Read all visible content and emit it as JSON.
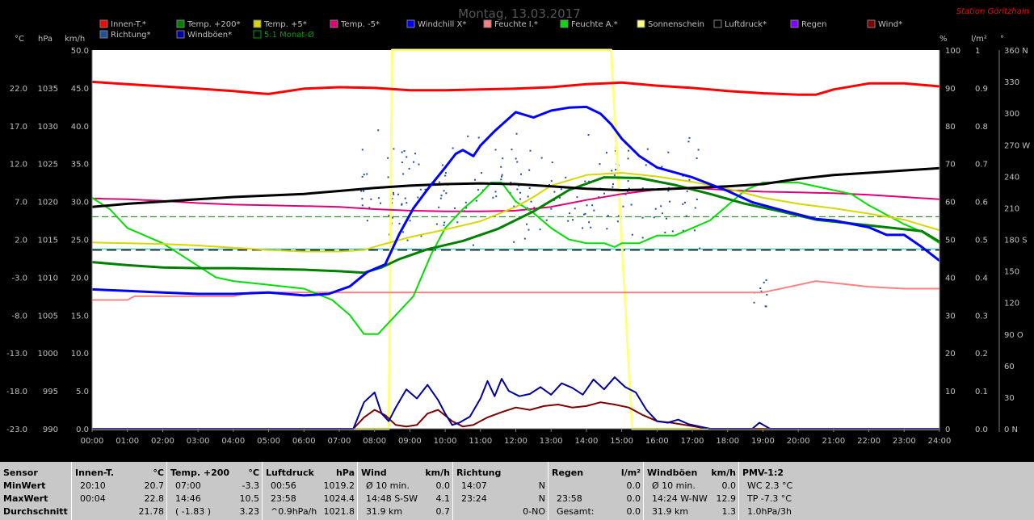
{
  "header": {
    "title": "Montag, 13.03.2017",
    "station": "Station Göritzhain",
    "colors": {
      "background": "#000000",
      "plot": "#ffffff",
      "station": "#ff0000",
      "title": "#555555"
    }
  },
  "legend": [
    {
      "name": "Innen-T.*",
      "color": "#ff0000"
    },
    {
      "name": "Temp. +200*",
      "color": "#008000"
    },
    {
      "name": "Temp. +5*",
      "color": "#d8d800"
    },
    {
      "name": "Temp. -5*",
      "color": "#e0007a"
    },
    {
      "name": "Windchill X*",
      "color": "#0000ff"
    },
    {
      "name": "Feuchte I.*",
      "color": "#ff8080"
    },
    {
      "name": "Feuchte A.*",
      "color": "#00e000"
    },
    {
      "name": "Sonnenschein",
      "color": "#ffff80"
    },
    {
      "name": "Luftdruck*",
      "color": "#000000"
    },
    {
      "name": "Regen",
      "color": "#8000ff"
    },
    {
      "name": "Wind*",
      "color": "#800000"
    },
    {
      "name": "Richtung*",
      "color": "#2050a0"
    },
    {
      "name": "Windböen*",
      "color": "#0000a0"
    },
    {
      "name": "5.1 Monat-Ø",
      "color": "#00a000"
    }
  ],
  "chart_data": {
    "type": "line",
    "x_range": [
      0,
      24
    ],
    "x_ticks": [
      "00:00",
      "01:00",
      "02:00",
      "03:00",
      "04:00",
      "05:00",
      "06:00",
      "07:00",
      "08:00",
      "09:00",
      "10:00",
      "11:00",
      "12:00",
      "13:00",
      "14:00",
      "15:00",
      "16:00",
      "17:00",
      "18:00",
      "19:00",
      "20:00",
      "21:00",
      "22:00",
      "23:00",
      "24:00"
    ],
    "axes": {
      "temp_c": {
        "unit": "°C",
        "range": [
          -23,
          27
        ],
        "ticks": [
          "22.0",
          "17.0",
          "12.0",
          "7.0",
          "2.0",
          "-3.0",
          "-8.0",
          "-13.0",
          "-18.0",
          "-23.0"
        ]
      },
      "pressure_hpa": {
        "unit": "hPa",
        "range": [
          990,
          1040
        ],
        "ticks": [
          "1035",
          "1030",
          "1025",
          "1020",
          "1015",
          "1010",
          "1005",
          "1000",
          "995",
          "990"
        ]
      },
      "wind_kmh": {
        "unit": "km/h",
        "range": [
          0,
          50
        ],
        "ticks": [
          "50.0",
          "45.0",
          "40.0",
          "35.0",
          "30.0",
          "25.0",
          "20.0",
          "15.0",
          "10.0",
          "5.0",
          "0.0"
        ]
      },
      "humidity_pct": {
        "unit": "%",
        "range": [
          0,
          100
        ],
        "ticks": [
          "100",
          "90",
          "80",
          "70",
          "60",
          "50",
          "40",
          "30",
          "20",
          "10",
          "0"
        ]
      },
      "rain_lm2": {
        "unit": "l/m²",
        "range": [
          0,
          1
        ],
        "ticks": [
          "1",
          "0.9",
          "0.8",
          "0.7",
          "0.6",
          "0.5",
          "0.4",
          "0.3",
          "0.2",
          "0.1",
          "0.0"
        ]
      },
      "direction_deg": {
        "unit": "°",
        "range": [
          0,
          360
        ],
        "ticks": [
          "360 N",
          "330",
          "300",
          "270 W",
          "240",
          "210",
          "180 S",
          "150",
          "120",
          "90 O",
          "60",
          "30",
          "0 N"
        ]
      }
    },
    "reference_lines": [
      {
        "name": "5.1 Monat-Ø",
        "axis": "temp_c",
        "value": 5.0,
        "color": "#008000",
        "style": "dashed"
      },
      {
        "axis": "temp_c",
        "value": 0.6,
        "color": "#000000",
        "style": "dashed"
      },
      {
        "axis": "humidity_pct",
        "value": 47.5,
        "color": "#00c0c0",
        "style": "solid"
      }
    ],
    "series": [
      {
        "name": "Innen-T.*",
        "axis": "temp_c",
        "color": "#ff0000",
        "width": 3,
        "x": [
          0,
          1,
          2,
          3,
          4,
          4.7,
          5,
          6,
          7,
          8,
          9,
          10,
          11,
          12,
          13,
          14,
          15,
          16,
          17,
          18,
          19,
          20,
          20.5,
          21,
          22,
          23,
          24
        ],
        "y": [
          22.8,
          22.5,
          22.2,
          21.9,
          21.6,
          21.3,
          21.2,
          21.9,
          22.1,
          22.0,
          21.7,
          21.7,
          21.8,
          21.9,
          22.1,
          22.5,
          22.7,
          22.3,
          22.0,
          21.6,
          21.3,
          21.1,
          21.1,
          21.8,
          22.6,
          22.6,
          22.2
        ]
      },
      {
        "name": "Temp. +200*",
        "axis": "temp_c",
        "color": "#008000",
        "width": 3,
        "x": [
          0,
          1,
          2,
          3,
          4,
          5,
          6,
          7,
          7.7,
          8.2,
          8.7,
          9.5,
          10.5,
          11.5,
          12.5,
          13.5,
          14.5,
          15.5,
          16.5,
          17.5,
          18.5,
          19.5,
          20.5,
          21.5,
          22.5,
          23.5,
          24
        ],
        "y": [
          -1.0,
          -1.4,
          -1.7,
          -1.8,
          -1.8,
          -1.9,
          -2.0,
          -2.2,
          -2.4,
          -1.7,
          -0.6,
          0.7,
          1.8,
          3.4,
          5.7,
          8.5,
          10.2,
          10.1,
          9.2,
          8.0,
          6.7,
          5.7,
          4.6,
          4.1,
          3.6,
          3.1,
          1.7
        ]
      },
      {
        "name": "Temp. +5*",
        "axis": "temp_c",
        "color": "#d8d800",
        "width": 2,
        "x": [
          0,
          1,
          2,
          3,
          4,
          5,
          6,
          7,
          7.7,
          8.2,
          9,
          10,
          11,
          12,
          12.5,
          13,
          14,
          15,
          16,
          17,
          18,
          19,
          20,
          21,
          22,
          23,
          24
        ],
        "y": [
          1.6,
          1.5,
          1.4,
          1.2,
          0.9,
          0.6,
          0.4,
          0.4,
          0.6,
          1.3,
          2.3,
          3.3,
          4.4,
          6.3,
          7.6,
          9.1,
          10.5,
          10.8,
          10.3,
          9.6,
          8.7,
          7.5,
          6.7,
          6.1,
          5.4,
          4.6,
          3.2
        ]
      },
      {
        "name": "Temp. -5*",
        "axis": "temp_c",
        "color": "#e0007a",
        "width": 2,
        "x": [
          0,
          1,
          2,
          3,
          4,
          5,
          6,
          7,
          8,
          9,
          10,
          11,
          12,
          13,
          14,
          15,
          16,
          17,
          18,
          19,
          20,
          21,
          22,
          23,
          24
        ],
        "y": [
          7.4,
          7.3,
          7.1,
          6.8,
          6.6,
          6.5,
          6.4,
          6.3,
          6.0,
          5.8,
          5.7,
          5.7,
          5.8,
          6.3,
          7.2,
          8.0,
          8.6,
          8.8,
          8.5,
          8.3,
          8.2,
          8.1,
          7.9,
          7.6,
          7.3
        ]
      },
      {
        "name": "Windchill X*",
        "axis": "temp_c",
        "color": "#0000ff",
        "width": 3,
        "x": [
          0,
          1,
          2,
          3,
          4,
          5,
          6,
          6.7,
          7.3,
          7.8,
          8.3,
          8.7,
          9.1,
          9.5,
          10,
          10.3,
          10.5,
          10.8,
          11,
          11.4,
          12,
          12.5,
          13,
          13.5,
          14,
          14.4,
          14.7,
          15,
          15.5,
          16,
          17,
          18,
          18.7,
          19.5,
          20.5,
          21,
          22,
          22.5,
          23,
          23.5,
          24
        ],
        "y": [
          -4.6,
          -4.8,
          -5.0,
          -5.2,
          -5.2,
          -5.0,
          -5.4,
          -5.2,
          -4.2,
          -2.3,
          -1.3,
          2.7,
          6.1,
          8.6,
          11.5,
          13.3,
          13.8,
          13.0,
          14.4,
          16.3,
          18.8,
          18.1,
          19.0,
          19.4,
          19.5,
          18.6,
          17.2,
          15.3,
          13.0,
          11.5,
          10.2,
          8.4,
          6.9,
          5.9,
          4.7,
          4.5,
          3.6,
          2.6,
          2.6,
          1.0,
          -0.8
        ]
      },
      {
        "name": "Feuchte I.*",
        "axis": "humidity_pct",
        "color": "#ff8080",
        "width": 2,
        "x": [
          0,
          1,
          1.2,
          2,
          3,
          4,
          4.5,
          5,
          6,
          7,
          8,
          9,
          10,
          11,
          12,
          13,
          14,
          15,
          16,
          17,
          18,
          19,
          20,
          20.5,
          21,
          21.5,
          22,
          23,
          24
        ],
        "y": [
          34.0,
          34.0,
          35.0,
          35.0,
          35.0,
          35.0,
          36.0,
          36.0,
          36.0,
          36.0,
          36.0,
          36.0,
          36.0,
          36.0,
          36.0,
          36.0,
          36.0,
          36.0,
          36.0,
          36.0,
          36.0,
          36.0,
          38.0,
          39.0,
          38.5,
          38.0,
          37.5,
          37.0,
          37.0
        ]
      },
      {
        "name": "Feuchte A.*",
        "axis": "humidity_pct",
        "color": "#00e000",
        "width": 2,
        "x": [
          0,
          0.5,
          1,
          2,
          3,
          3.5,
          4,
          5,
          6,
          6.8,
          7.3,
          7.7,
          8.1,
          8.6,
          9.1,
          9.6,
          10,
          10.5,
          11,
          11.3,
          11.6,
          12,
          12.5,
          13,
          13.5,
          14,
          14.5,
          14.8,
          15,
          15.5,
          16,
          16.5,
          17,
          17.5,
          18,
          18.5,
          19,
          20,
          21,
          21.5,
          22,
          23,
          23.5,
          24
        ],
        "y": [
          61.0,
          58.0,
          53.0,
          49.0,
          43.0,
          40.0,
          39.0,
          38.0,
          37.0,
          34.0,
          30.0,
          25.0,
          25.0,
          30.0,
          35.0,
          46.0,
          53.0,
          58.0,
          62.0,
          65.0,
          65.0,
          60.0,
          57.0,
          53.0,
          50.0,
          49.0,
          49.0,
          48.0,
          49.0,
          49.0,
          51.0,
          51.0,
          53.0,
          55.0,
          59.0,
          63.0,
          65.0,
          65.0,
          63.0,
          62.0,
          59.0,
          54.0,
          52.0,
          49.0
        ]
      },
      {
        "name": "Sonnenschein",
        "axis": "humidity_pct",
        "color": "#ffff80",
        "width": 3,
        "step": true,
        "x": [
          0,
          8.4,
          8.5,
          14.7,
          15.3,
          24
        ],
        "y": [
          0,
          0,
          100,
          100,
          0,
          0
        ]
      },
      {
        "name": "Luftdruck*",
        "axis": "pressure_hpa",
        "color": "#000000",
        "width": 3,
        "x": [
          0,
          1,
          2,
          3,
          4,
          5,
          6,
          7,
          8,
          9,
          10,
          11,
          12,
          13,
          14,
          15,
          16,
          17,
          18,
          19,
          20,
          21,
          22,
          23,
          24
        ],
        "y": [
          1019.3,
          1019.7,
          1020.0,
          1020.3,
          1020.6,
          1020.8,
          1021.0,
          1021.4,
          1021.8,
          1022.1,
          1022.3,
          1022.4,
          1022.3,
          1022.0,
          1021.7,
          1021.5,
          1021.6,
          1021.8,
          1022.0,
          1022.3,
          1023.0,
          1023.5,
          1023.8,
          1024.1,
          1024.4
        ]
      },
      {
        "name": "Wind*",
        "axis": "wind_kmh",
        "color": "#800000",
        "width": 2,
        "x": [
          0,
          7.4,
          7.7,
          8.0,
          8.3,
          8.6,
          8.9,
          9.2,
          9.5,
          9.8,
          10.2,
          10.5,
          10.8,
          11.2,
          11.6,
          12.0,
          12.4,
          12.8,
          13.2,
          13.6,
          14.0,
          14.4,
          14.8,
          15.2,
          15.6,
          16.0,
          16.4,
          16.8,
          17.2,
          17.5,
          24
        ],
        "y": [
          0,
          0,
          1.5,
          2.5,
          1.8,
          0.5,
          0.3,
          0.5,
          2.0,
          2.5,
          1.0,
          0.3,
          0.5,
          1.5,
          2.2,
          2.8,
          2.5,
          3.0,
          3.2,
          2.8,
          3.0,
          3.5,
          3.2,
          2.8,
          1.8,
          1.0,
          0.8,
          0.5,
          0.2,
          0,
          0
        ]
      },
      {
        "name": "Windböen*",
        "axis": "wind_kmh",
        "color": "#0000a0",
        "width": 2,
        "x": [
          0,
          7.4,
          7.7,
          8.0,
          8.2,
          8.4,
          8.6,
          8.9,
          9.2,
          9.5,
          9.8,
          10.0,
          10.2,
          10.4,
          10.7,
          11.0,
          11.2,
          11.4,
          11.6,
          11.8,
          12.1,
          12.4,
          12.7,
          13.0,
          13.3,
          13.6,
          13.9,
          14.2,
          14.5,
          14.8,
          15.1,
          15.4,
          15.7,
          16.0,
          16.3,
          16.6,
          16.9,
          17.2,
          17.5,
          18.7,
          18.9,
          19.2,
          24
        ],
        "y": [
          0,
          0,
          3.5,
          4.8,
          2.0,
          1.0,
          2.8,
          5.2,
          4.0,
          5.8,
          3.8,
          2.0,
          0.5,
          0.8,
          1.6,
          4.0,
          6.3,
          4.3,
          6.6,
          5.0,
          4.3,
          4.6,
          5.5,
          4.5,
          6.0,
          5.4,
          4.5,
          6.5,
          5.2,
          6.8,
          5.5,
          4.8,
          2.5,
          1.0,
          0.8,
          1.2,
          0.6,
          0.3,
          0,
          0,
          0.8,
          0,
          0
        ]
      }
    ],
    "scatter_series": [
      {
        "name": "Richtung*",
        "axis": "direction_deg",
        "color": "#2050a0",
        "start": 7.6,
        "end": 17.2,
        "center": 230,
        "spread": 60
      },
      {
        "name": "Richtung*",
        "axis": "direction_deg",
        "color": "#2050a0",
        "start": 18.7,
        "end": 19.1,
        "center": 130,
        "spread": 20
      }
    ]
  },
  "table": {
    "row_labels": [
      "Sensor",
      "MinWert",
      "MaxWert",
      "Durchschnitt"
    ],
    "columns": [
      {
        "title": "Innen-T.",
        "unit": "°C",
        "cells": [
          [
            "20:10",
            "20.7"
          ],
          [
            "00:04",
            "22.8"
          ],
          [
            "",
            "21.78"
          ]
        ]
      },
      {
        "title": "Temp. +200",
        "unit": "°C",
        "cells": [
          [
            "07:00",
            "-3.3"
          ],
          [
            "14:46",
            "10.5"
          ],
          [
            "( -1.83 )",
            "3.23"
          ]
        ]
      },
      {
        "title": "Luftdruck",
        "unit": "hPa",
        "cells": [
          [
            "00:56",
            "1019.2"
          ],
          [
            "23:58",
            "1024.4"
          ],
          [
            "^0.9hPa/h",
            "1021.8"
          ]
        ]
      },
      {
        "title": "Wind",
        "unit": "km/h",
        "cells": [
          [
            "Ø 10 min.",
            "0.0"
          ],
          [
            "14:48   S-SW",
            "4.1"
          ],
          [
            "31.9 km",
            "0.7"
          ]
        ]
      },
      {
        "title": "Richtung",
        "unit": "",
        "cells": [
          [
            "14:07",
            "N"
          ],
          [
            "23:24",
            "N"
          ],
          [
            "",
            "0-NO"
          ]
        ]
      },
      {
        "title": "Regen",
        "unit": "l/m²",
        "cells": [
          [
            "",
            "0.0"
          ],
          [
            "23:58",
            "0.0"
          ],
          [
            "Gesamt:",
            "0.0"
          ]
        ]
      },
      {
        "title": "Windböen",
        "unit": "km/h",
        "cells": [
          [
            "Ø 10 min.",
            "0.0"
          ],
          [
            "14:24   W-NW",
            "12.9"
          ],
          [
            "31.9 km",
            "1.3"
          ]
        ]
      },
      {
        "title": "PMV-1:2",
        "unit": "",
        "cells": [
          [
            "WC 2.3 °C",
            ""
          ],
          [
            "TP -7.3 °C",
            ""
          ],
          [
            "1.0hPa/3h",
            ""
          ]
        ]
      }
    ]
  }
}
